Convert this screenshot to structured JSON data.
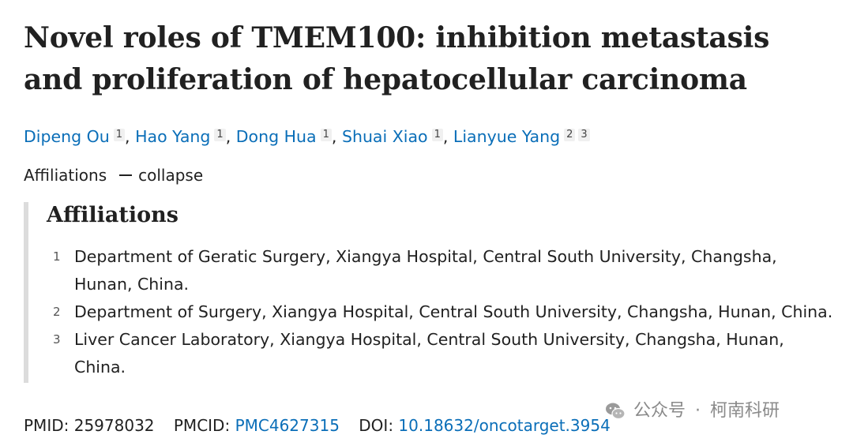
{
  "title": "Novel roles of TMEM100: inhibition metastasis and proliferation of hepatocellular carcinoma",
  "authors": [
    {
      "name": "Dipeng Ou",
      "affs": [
        "1"
      ]
    },
    {
      "name": "Hao Yang",
      "affs": [
        "1"
      ]
    },
    {
      "name": "Dong Hua",
      "affs": [
        "1"
      ]
    },
    {
      "name": "Shuai Xiao",
      "affs": [
        "1"
      ]
    },
    {
      "name": "Lianyue Yang",
      "affs": [
        "2",
        "3"
      ]
    }
  ],
  "author_separator": ",",
  "affiliations_toggle": {
    "label": "Affiliations",
    "action": "collapse"
  },
  "affiliations": {
    "heading": "Affiliations",
    "items": [
      {
        "num": "1",
        "text": "Department of Geratic Surgery, Xiangya Hospital, Central South University, Changsha, Hunan, China."
      },
      {
        "num": "2",
        "text": "Department of Surgery, Xiangya Hospital, Central South University, Changsha, Hunan, China."
      },
      {
        "num": "3",
        "text": "Liver Cancer Laboratory, Xiangya Hospital, Central South University, Changsha, Hunan, China."
      }
    ]
  },
  "identifiers": {
    "pmid_label": "PMID:",
    "pmid": "25978032",
    "pmcid_label": "PMCID:",
    "pmcid": "PMC4627315",
    "doi_label": "DOI:",
    "doi": "10.18632/oncotarget.3954"
  },
  "watermark": {
    "icon": "wechat-icon",
    "source": "公众号",
    "dot": "·",
    "name": "柯南科研"
  },
  "colors": {
    "link": "#0a6eb8",
    "text": "#212121",
    "panel_border": "#dcdcdc",
    "watermark": "#8a8a8a"
  }
}
